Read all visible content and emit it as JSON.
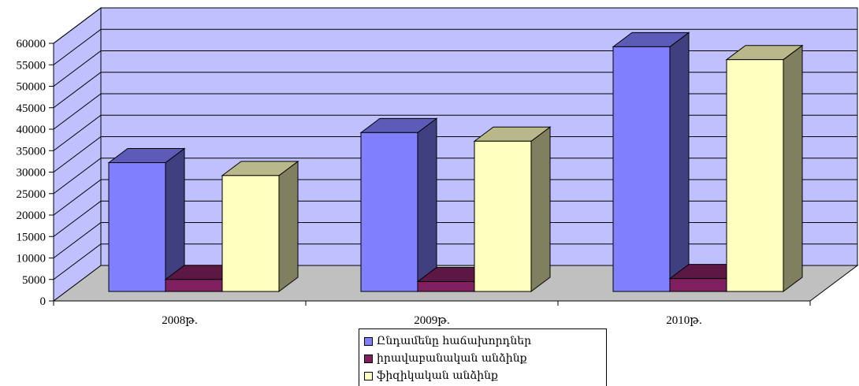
{
  "chart_data": {
    "type": "bar",
    "categories": [
      "2008թ.",
      "2009թ.",
      "2010թ."
    ],
    "series": [
      {
        "name": "Ընդամենը հաճախորդներ",
        "values": [
          30000,
          37000,
          57000
        ],
        "color": "#8080ff"
      },
      {
        "name": "իրավաբանական անձինք",
        "values": [
          2800,
          2300,
          3000
        ],
        "color": "#802060"
      },
      {
        "name": "ֆիզիկական անձինք",
        "values": [
          27000,
          35000,
          54000
        ],
        "color": "#ffffc0"
      }
    ],
    "yticks": [
      "0",
      "5000",
      "10000",
      "15000",
      "20000",
      "25000",
      "30000",
      "35000",
      "40000",
      "45000",
      "50000",
      "55000",
      "60000"
    ],
    "ylim": [
      0,
      60000
    ],
    "grid": true,
    "legend_position": "bottom",
    "wall_color": "#c0c0ff",
    "floor_color": "#c0c0c0"
  }
}
